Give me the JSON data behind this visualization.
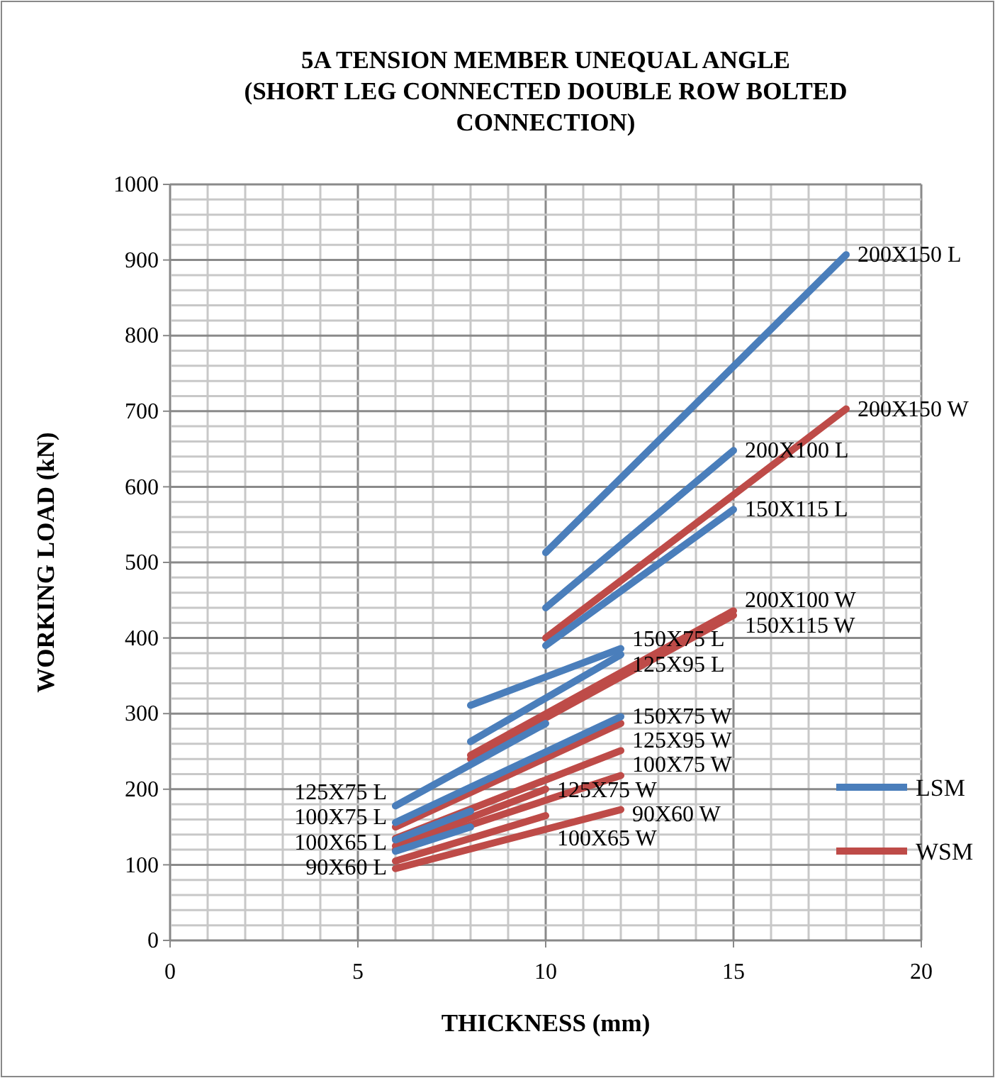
{
  "chart_data": {
    "type": "line",
    "title": "5A TENSION MEMBER UNEQUAL ANGLE\n(SHORT LEG CONNECTED DOUBLE ROW BOLTED\nCONNECTION)",
    "xlabel": "THICKNESS (mm)",
    "ylabel": "WORKING LOAD (kN)",
    "xlim": [
      0,
      20
    ],
    "xticks": [
      0,
      5,
      10,
      15,
      20
    ],
    "ylim": [
      0,
      1000
    ],
    "yticks": [
      0,
      100,
      200,
      300,
      400,
      500,
      600,
      700,
      800,
      900,
      1000
    ],
    "grid": true,
    "legend": "right",
    "marker": "none",
    "line_style": "solid",
    "series": [
      {
        "name": "LSM",
        "color": "#4a7ebb",
        "x": [
          10,
          18
        ],
        "values": [
          513,
          907
        ]
      },
      {
        "color": "#4a7ebb",
        "x": [
          10,
          15
        ],
        "values": [
          440,
          648
        ]
      },
      {
        "color": "#4a7ebb",
        "x": [
          10,
          15
        ],
        "values": [
          390,
          570
        ]
      },
      {
        "color": "#4a7ebb",
        "x": [
          8,
          12
        ],
        "values": [
          311,
          386
        ]
      },
      {
        "color": "#4a7ebb",
        "x": [
          8,
          12
        ],
        "values": [
          263,
          378
        ]
      },
      {
        "color": "#4a7ebb",
        "x": [
          6,
          10
        ],
        "values": [
          178,
          287
        ]
      },
      {
        "color": "#4a7ebb",
        "x": [
          6,
          12
        ],
        "values": [
          156,
          296
        ]
      },
      {
        "color": "#4a7ebb",
        "x": [
          6,
          8
        ],
        "values": [
          133,
          171
        ]
      },
      {
        "color": "#4a7ebb",
        "x": [
          6,
          8
        ],
        "values": [
          118,
          150
        ]
      },
      {
        "name": "WSM",
        "color": "#be4b48",
        "x": [
          10,
          18
        ],
        "values": [
          400,
          703
        ]
      },
      {
        "color": "#be4b48",
        "x": [
          8,
          15
        ],
        "values": [
          245,
          436
        ]
      },
      {
        "color": "#be4b48",
        "x": [
          8,
          15
        ],
        "values": [
          240,
          430
        ]
      },
      {
        "color": "#be4b48",
        "x": [
          6,
          12
        ],
        "values": [
          150,
          287
        ]
      },
      {
        "color": "#be4b48",
        "x": [
          6,
          12
        ],
        "values": [
          135,
          251
        ]
      },
      {
        "color": "#be4b48",
        "x": [
          6,
          12
        ],
        "values": [
          120,
          218
        ]
      },
      {
        "color": "#be4b48",
        "x": [
          6,
          12
        ],
        "values": [
          95,
          173
        ]
      },
      {
        "color": "#be4b48",
        "x": [
          6,
          10
        ],
        "values": [
          125,
          200
        ]
      },
      {
        "color": "#be4b48",
        "x": [
          6,
          10
        ],
        "values": [
          105,
          165
        ]
      }
    ],
    "annotations": [
      {
        "text": "200X150 L",
        "x": 18,
        "y": 907
      },
      {
        "text": "200X150 W",
        "x": 18,
        "y": 703
      },
      {
        "text": "200X100 L",
        "x": 15,
        "y": 648
      },
      {
        "text": "150X115 L",
        "x": 15,
        "y": 570
      },
      {
        "text": "200X100 W",
        "x": 15,
        "y": 436
      },
      {
        "text": "150X115 W",
        "x": 15,
        "y": 430
      },
      {
        "text": "150X75 L",
        "x": 12,
        "y": 386
      },
      {
        "text": "125X95 L",
        "x": 12,
        "y": 378
      },
      {
        "text": "150X75 W",
        "x": 12,
        "y": 287
      },
      {
        "text": "125X95 W",
        "x": 12,
        "y": 251
      },
      {
        "text": "100X75 W",
        "x": 12,
        "y": 218
      },
      {
        "text": "90X60 W",
        "x": 12,
        "y": 173
      },
      {
        "text": "125X75 W",
        "x": 10,
        "y": 200
      },
      {
        "text": "100X65 W",
        "x": 10,
        "y": 165
      },
      {
        "text": "125X75 L",
        "x": 6,
        "y": 178
      },
      {
        "text": "100X75 L",
        "x": 6,
        "y": 156
      },
      {
        "text": "100X65 L",
        "x": 6,
        "y": 133
      },
      {
        "text": "90X60 L",
        "x": 6,
        "y": 118
      }
    ]
  }
}
